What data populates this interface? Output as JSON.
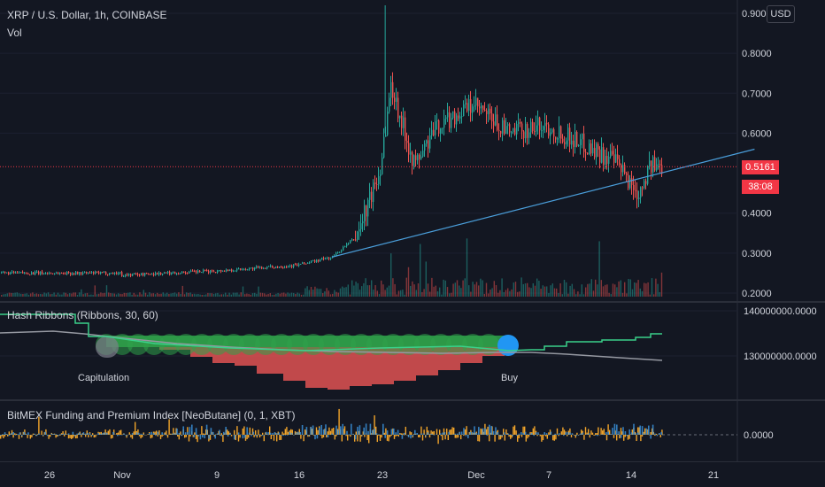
{
  "main_pane": {
    "title": "XRP / U.S. Dollar, 1h, COINBASE",
    "vol_label": "Vol",
    "currency_badge": "USD",
    "price_ticks": [
      "0.9000",
      "0.8000",
      "0.7000",
      "0.6000",
      "0.4000",
      "0.3000",
      "0.2000"
    ],
    "current_price": "0.5161",
    "countdown": "38:08"
  },
  "hash_pane": {
    "title": "Hash Ribbons (Ribbons, 30, 60)",
    "ticks": [
      "140000000.0000",
      "130000000.0000"
    ],
    "capitulation_label": "Capitulation",
    "buy_label": "Buy"
  },
  "bitmex_pane": {
    "title": "BitMEX Funding and Premium Index [NeoButane] (0, 1, XBT)",
    "ticks": [
      "0.0000"
    ]
  },
  "time_axis": [
    "26",
    "Nov",
    "9",
    "16",
    "23",
    "Dec",
    "7",
    "14",
    "21"
  ],
  "colors": {
    "background": "#131722",
    "up": "#26a69a",
    "down": "#ef5350",
    "trendline": "#4a9eda",
    "ribbon_green": "#2fa24a",
    "ribbon_red": "#e05252",
    "funding": "#f2a52a",
    "premium": "#3a8fd8"
  },
  "chart_data": {
    "type": "candlestick",
    "symbol": "XRP / U.S. Dollar",
    "interval": "1h",
    "exchange": "COINBASE",
    "y_range": [
      0.2,
      0.9
    ],
    "price_path": [
      {
        "date": "Oct 22",
        "price": 0.25
      },
      {
        "date": "Nov 1",
        "price": 0.245
      },
      {
        "date": "Nov 9",
        "price": 0.255
      },
      {
        "date": "Nov 16",
        "price": 0.27
      },
      {
        "date": "Nov 19",
        "price": 0.29
      },
      {
        "date": "Nov 21",
        "price": 0.34
      },
      {
        "date": "Nov 23",
        "price": 0.5
      },
      {
        "date": "Nov 24",
        "price": 0.72
      },
      {
        "date": "Nov 26",
        "price": 0.52
      },
      {
        "date": "Nov 28",
        "price": 0.62
      },
      {
        "date": "Dec 1",
        "price": 0.67
      },
      {
        "date": "Dec 4",
        "price": 0.6
      },
      {
        "date": "Dec 7",
        "price": 0.62
      },
      {
        "date": "Dec 10",
        "price": 0.58
      },
      {
        "date": "Dec 13",
        "price": 0.53
      },
      {
        "date": "Dec 15",
        "price": 0.45
      },
      {
        "date": "Dec 16",
        "price": 0.5161
      }
    ],
    "current_price": 0.5161,
    "ath_spike": 0.92,
    "trendline": [
      {
        "date": "Nov 19",
        "price": 0.29
      },
      {
        "date": "Dec 25",
        "price": 0.56
      }
    ]
  }
}
